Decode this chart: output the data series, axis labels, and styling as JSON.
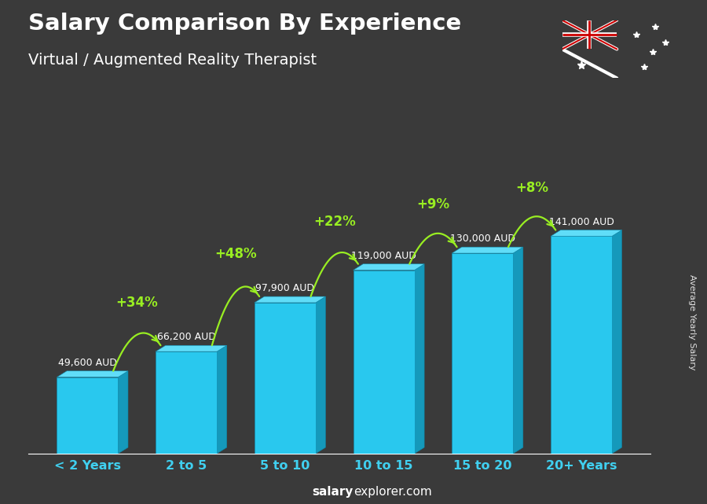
{
  "categories": [
    "< 2 Years",
    "2 to 5",
    "5 to 10",
    "10 to 15",
    "15 to 20",
    "20+ Years"
  ],
  "values": [
    49600,
    66200,
    97900,
    119000,
    130000,
    141000
  ],
  "salary_labels": [
    "49,600 AUD",
    "66,200 AUD",
    "97,900 AUD",
    "119,000 AUD",
    "130,000 AUD",
    "141,000 AUD"
  ],
  "pct_labels": [
    "+34%",
    "+48%",
    "+22%",
    "+9%",
    "+8%"
  ],
  "title_line1": "Salary Comparison By Experience",
  "title_line2": "Virtual / Augmented Reality Therapist",
  "ylabel": "Average Yearly Salary",
  "footer_bold": "salary",
  "footer_normal": "explorer.com",
  "bg_color": "#3a3a3a",
  "text_color_white": "#ffffff",
  "text_color_cyan": "#40d0f0",
  "text_color_green": "#99ee22",
  "bar_face_color": "#29c8ee",
  "bar_top_color": "#60ddf8",
  "bar_side_color": "#1599bb",
  "ylim_max": 170000,
  "bar_width": 0.62
}
